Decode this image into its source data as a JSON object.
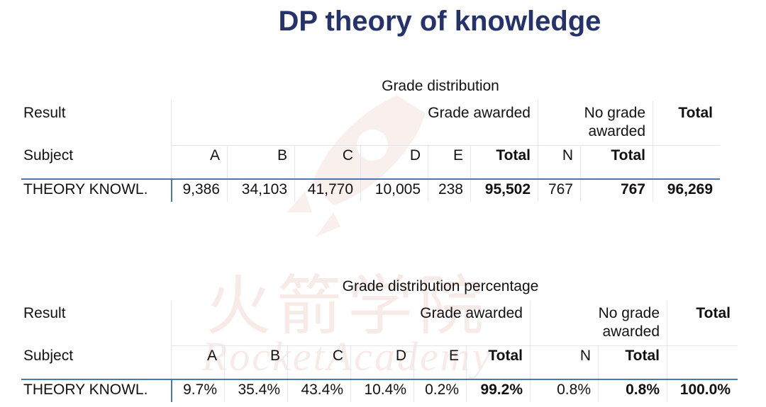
{
  "title": "DP theory of knowledge",
  "watermark": {
    "chinese": "火箭学院",
    "latin": "RocketAcademy"
  },
  "tables": [
    {
      "caption": "Grade distribution",
      "result_label": "Result",
      "subject_label": "Subject",
      "grade_awarded": "Grade awarded",
      "no_grade_awarded": "No grade awarded",
      "total": "Total",
      "columns": [
        "A",
        "B",
        "C",
        "D",
        "E",
        "Total",
        "N",
        "Total"
      ],
      "row": {
        "subject": "THEORY KNOWL.",
        "values": [
          "9,386",
          "34,103",
          "41,770",
          "10,005",
          "238",
          "95,502",
          "767",
          "767",
          "96,269"
        ]
      }
    },
    {
      "caption": "Grade distribution percentage",
      "result_label": "Result",
      "subject_label": "Subject",
      "grade_awarded": "Grade awarded",
      "no_grade_awarded": "No grade awarded",
      "total": "Total",
      "columns": [
        "A",
        "B",
        "C",
        "D",
        "E",
        "Total",
        "N",
        "Total"
      ],
      "row": {
        "subject": "THEORY KNOWL.",
        "values": [
          "9.7%",
          "35.4%",
          "43.4%",
          "10.4%",
          "0.2%",
          "99.2%",
          "0.8%",
          "0.8%",
          "100.0%"
        ]
      }
    }
  ]
}
